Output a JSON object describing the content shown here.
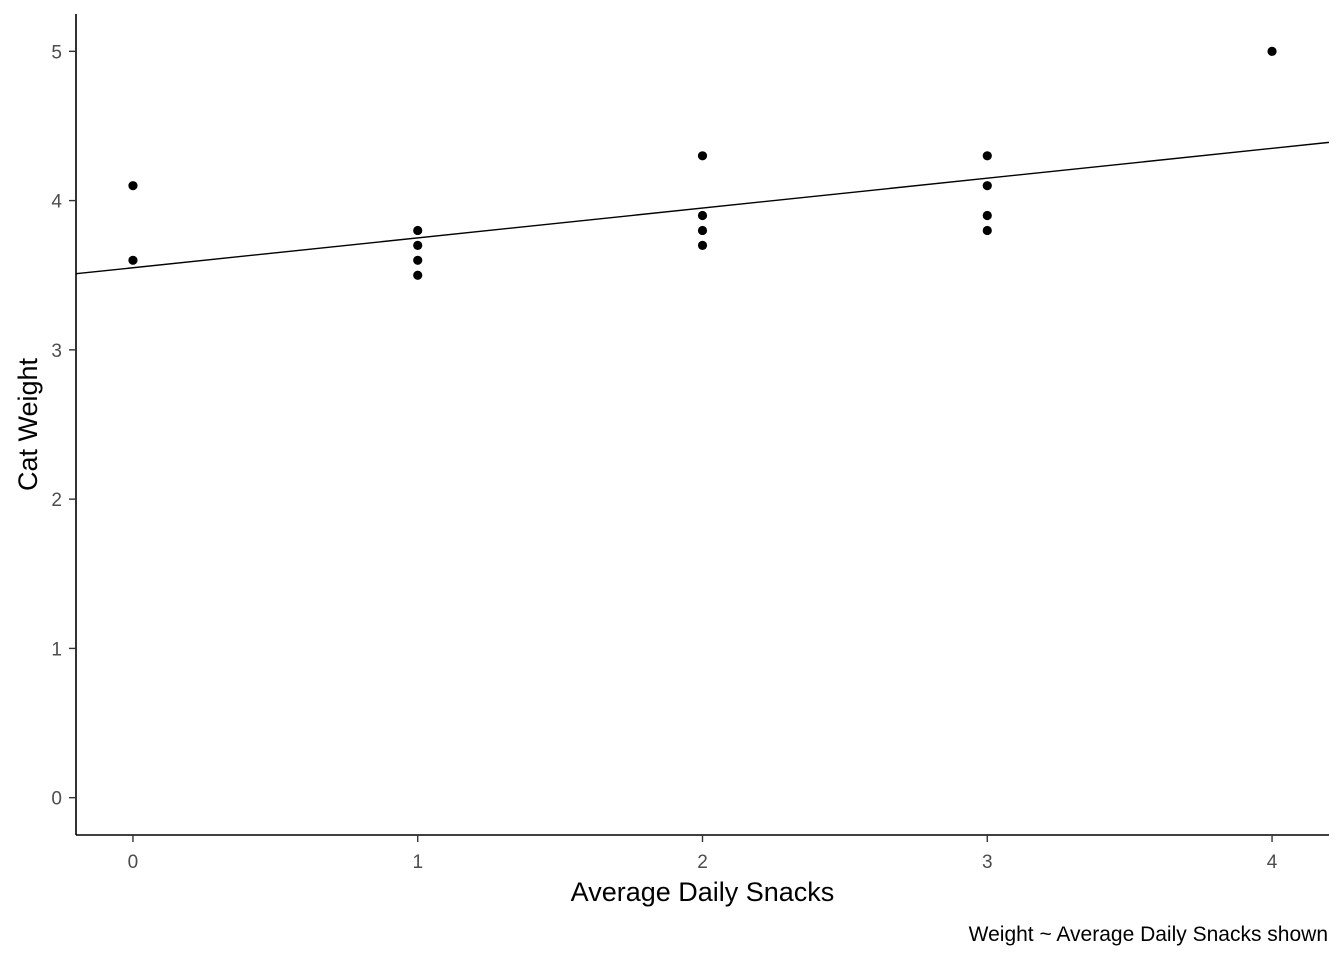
{
  "chart_data": {
    "type": "scatter",
    "title": "",
    "xlabel": "Average Daily Snacks",
    "ylabel": "Cat Weight",
    "caption": "Weight ~ Average Daily Snacks shown",
    "xlim": [
      -0.2,
      4.2
    ],
    "ylim": [
      -0.25,
      5.25
    ],
    "x_ticks": [
      0,
      1,
      2,
      3,
      4
    ],
    "x_tick_labels": [
      "0",
      "1",
      "2",
      "3",
      "4"
    ],
    "y_ticks": [
      0,
      1,
      2,
      3,
      4,
      5
    ],
    "y_tick_labels": [
      "0",
      "1",
      "2",
      "3",
      "4",
      "5"
    ],
    "grid": false,
    "series": [
      {
        "points": [
          {
            "x": 0,
            "y": 4.1
          },
          {
            "x": 0,
            "y": 3.6
          },
          {
            "x": 1,
            "y": 3.8
          },
          {
            "x": 1,
            "y": 3.7
          },
          {
            "x": 1,
            "y": 3.6
          },
          {
            "x": 1,
            "y": 3.5
          },
          {
            "x": 2,
            "y": 4.3
          },
          {
            "x": 2,
            "y": 3.9
          },
          {
            "x": 2,
            "y": 3.8
          },
          {
            "x": 2,
            "y": 3.7
          },
          {
            "x": 3,
            "y": 4.3
          },
          {
            "x": 3,
            "y": 4.1
          },
          {
            "x": 3,
            "y": 3.9
          },
          {
            "x": 3,
            "y": 3.8
          },
          {
            "x": 4,
            "y": 5.0
          }
        ]
      }
    ],
    "regression_line": {
      "intercept": 3.55,
      "slope": 0.2
    },
    "colors": {
      "point": "#000000",
      "line": "#000000",
      "axis": "#000000",
      "tick_label": "#4d4d4d"
    }
  }
}
